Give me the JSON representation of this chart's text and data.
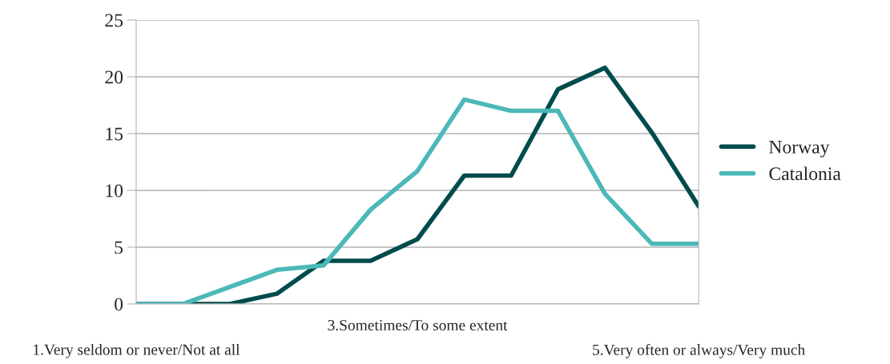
{
  "chart_data": {
    "type": "line",
    "categories": [
      "1.Very seldom or never/Not at all",
      null,
      null,
      null,
      null,
      null,
      "3.Sometimes/To some extent",
      null,
      null,
      null,
      null,
      null,
      "5.Very often or always/Very much"
    ],
    "series": [
      {
        "name": "Norway",
        "color": "#004c4c",
        "values": [
          0,
          0,
          0,
          0.9,
          3.8,
          3.8,
          5.7,
          11.3,
          11.3,
          18.9,
          20.8,
          15.1,
          8.6
        ]
      },
      {
        "name": "Catalonia",
        "color": "#4cb8b8",
        "values": [
          0,
          0,
          1.5,
          3.0,
          3.4,
          8.3,
          11.7,
          18.0,
          17.0,
          17.0,
          9.7,
          5.3,
          5.3
        ]
      }
    ],
    "ylim": [
      0,
      25
    ],
    "yticks": [
      0,
      5,
      10,
      15,
      20,
      25
    ],
    "grid": "y",
    "legend": "right",
    "marker": "none",
    "line_style": "solid"
  }
}
